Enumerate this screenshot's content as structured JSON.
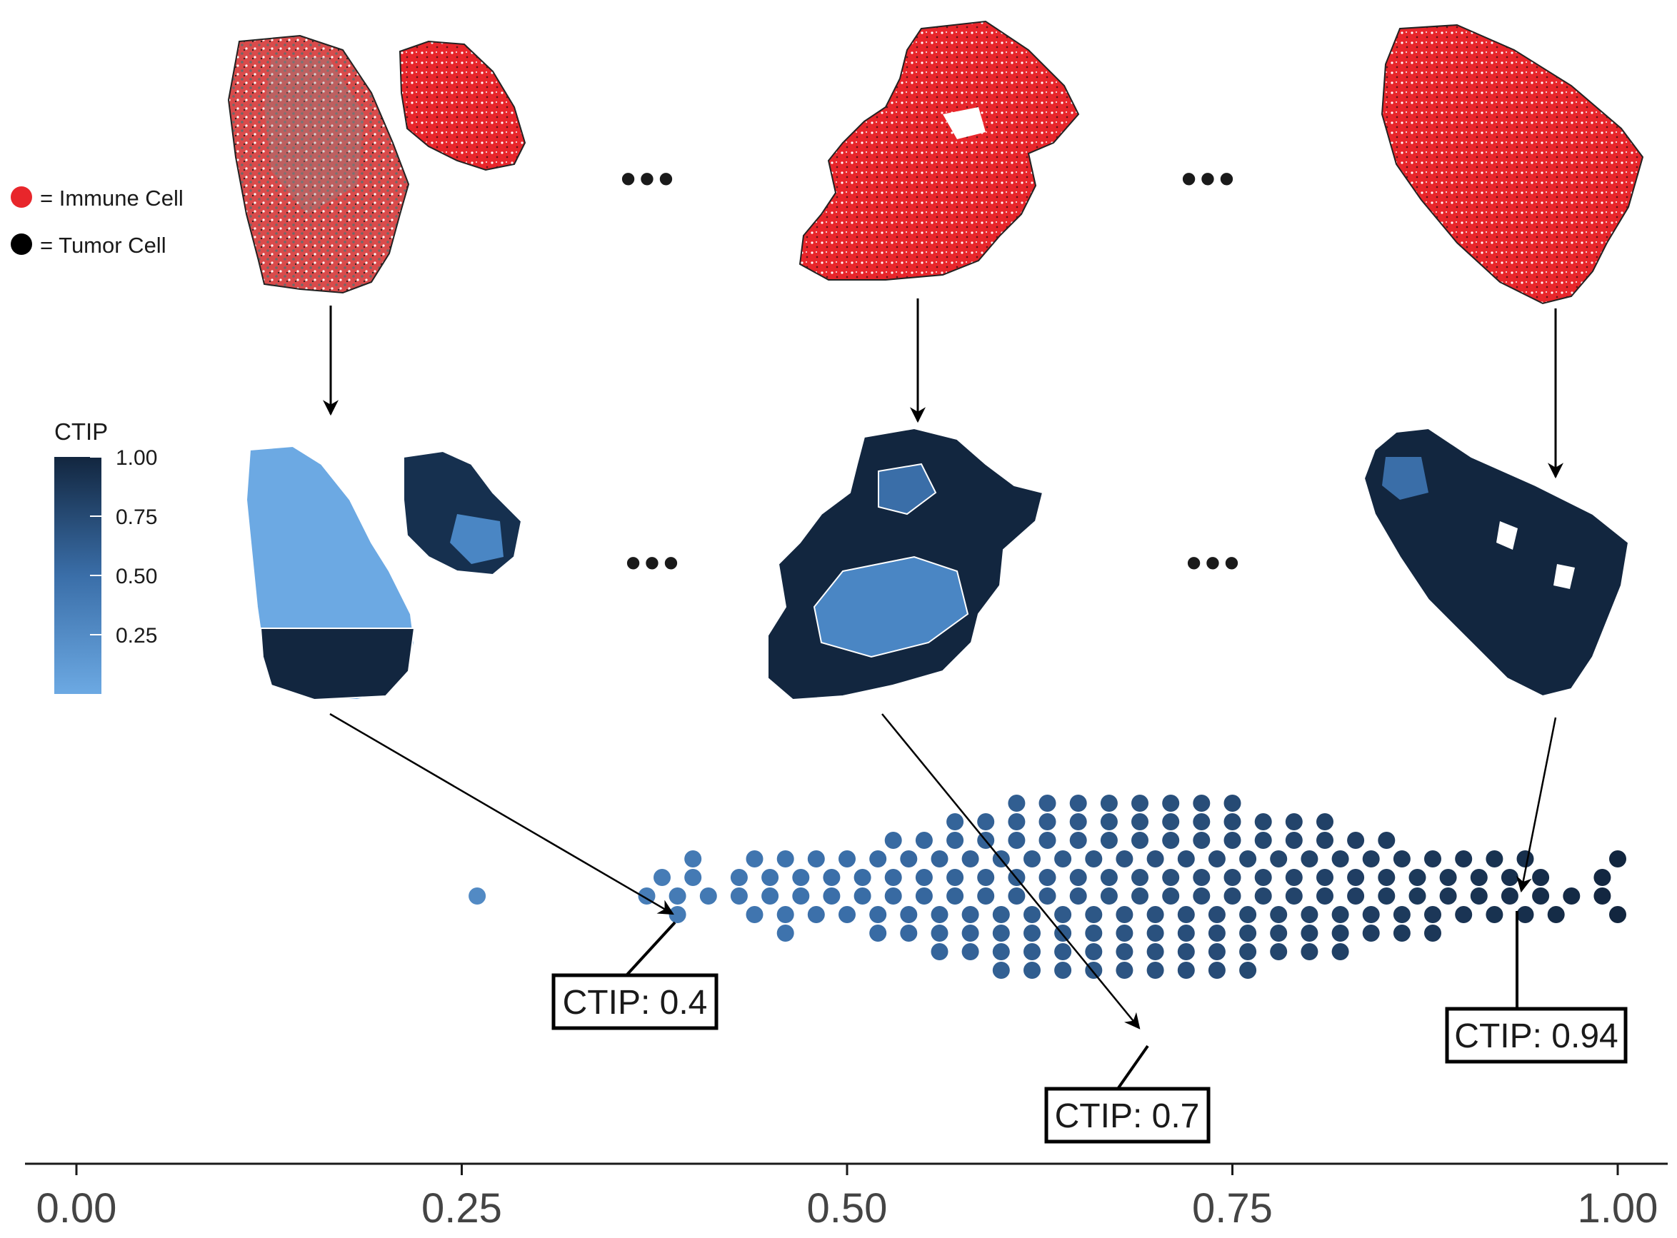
{
  "legend": {
    "items": [
      {
        "label": "= Immune Cell",
        "color": "#e8262b"
      },
      {
        "label": "= Tumor Cell",
        "color": "#000000"
      }
    ]
  },
  "colorbar": {
    "title": "CTIP",
    "ticks": [
      "1.00",
      "0.75",
      "0.50",
      "0.25"
    ],
    "color_low": "#6ca9e3",
    "color_high": "#12263f"
  },
  "ellipsis": "•••",
  "callouts": [
    {
      "label": "CTIP: 0.4",
      "value": 0.4
    },
    {
      "label": "CTIP: 0.7",
      "value": 0.7
    },
    {
      "label": "CTIP: 0.94",
      "value": 0.94
    }
  ],
  "chart_data": {
    "type": "scatter",
    "subtype": "beeswarm",
    "xlim": [
      0,
      1
    ],
    "xticks": [
      "0.00",
      "0.25",
      "0.50",
      "0.75",
      "1.00"
    ],
    "xlabel": "",
    "ylabel": "",
    "color_encodes": "CTIP",
    "x": [
      0.26,
      0.37,
      0.38,
      0.39,
      0.39,
      0.4,
      0.4,
      0.41,
      0.43,
      0.43,
      0.44,
      0.44,
      0.45,
      0.45,
      0.46,
      0.46,
      0.46,
      0.47,
      0.47,
      0.48,
      0.48,
      0.49,
      0.49,
      0.5,
      0.5,
      0.51,
      0.51,
      0.52,
      0.52,
      0.52,
      0.53,
      0.53,
      0.53,
      0.54,
      0.54,
      0.54,
      0.55,
      0.55,
      0.55,
      0.56,
      0.56,
      0.56,
      0.56,
      0.57,
      0.57,
      0.57,
      0.57,
      0.58,
      0.58,
      0.58,
      0.58,
      0.59,
      0.59,
      0.59,
      0.59,
      0.6,
      0.6,
      0.6,
      0.6,
      0.6,
      0.61,
      0.61,
      0.61,
      0.61,
      0.61,
      0.62,
      0.62,
      0.62,
      0.62,
      0.62,
      0.63,
      0.63,
      0.63,
      0.63,
      0.63,
      0.64,
      0.64,
      0.64,
      0.64,
      0.64,
      0.65,
      0.65,
      0.65,
      0.65,
      0.65,
      0.66,
      0.66,
      0.66,
      0.66,
      0.66,
      0.67,
      0.67,
      0.67,
      0.67,
      0.67,
      0.68,
      0.68,
      0.68,
      0.68,
      0.68,
      0.69,
      0.69,
      0.69,
      0.69,
      0.69,
      0.7,
      0.7,
      0.7,
      0.7,
      0.7,
      0.71,
      0.71,
      0.71,
      0.71,
      0.71,
      0.72,
      0.72,
      0.72,
      0.72,
      0.72,
      0.73,
      0.73,
      0.73,
      0.73,
      0.73,
      0.74,
      0.74,
      0.74,
      0.74,
      0.74,
      0.75,
      0.75,
      0.75,
      0.75,
      0.75,
      0.76,
      0.76,
      0.76,
      0.76,
      0.76,
      0.77,
      0.77,
      0.77,
      0.77,
      0.78,
      0.78,
      0.78,
      0.78,
      0.79,
      0.79,
      0.79,
      0.79,
      0.8,
      0.8,
      0.8,
      0.8,
      0.81,
      0.81,
      0.81,
      0.81,
      0.82,
      0.82,
      0.82,
      0.82,
      0.83,
      0.83,
      0.83,
      0.84,
      0.84,
      0.84,
      0.85,
      0.85,
      0.85,
      0.86,
      0.86,
      0.86,
      0.87,
      0.87,
      0.88,
      0.88,
      0.88,
      0.89,
      0.89,
      0.9,
      0.9,
      0.91,
      0.91,
      0.92,
      0.92,
      0.93,
      0.93,
      0.94,
      0.94,
      0.95,
      0.95,
      0.96,
      0.97,
      0.99,
      0.99,
      1.0,
      1.0
    ]
  }
}
